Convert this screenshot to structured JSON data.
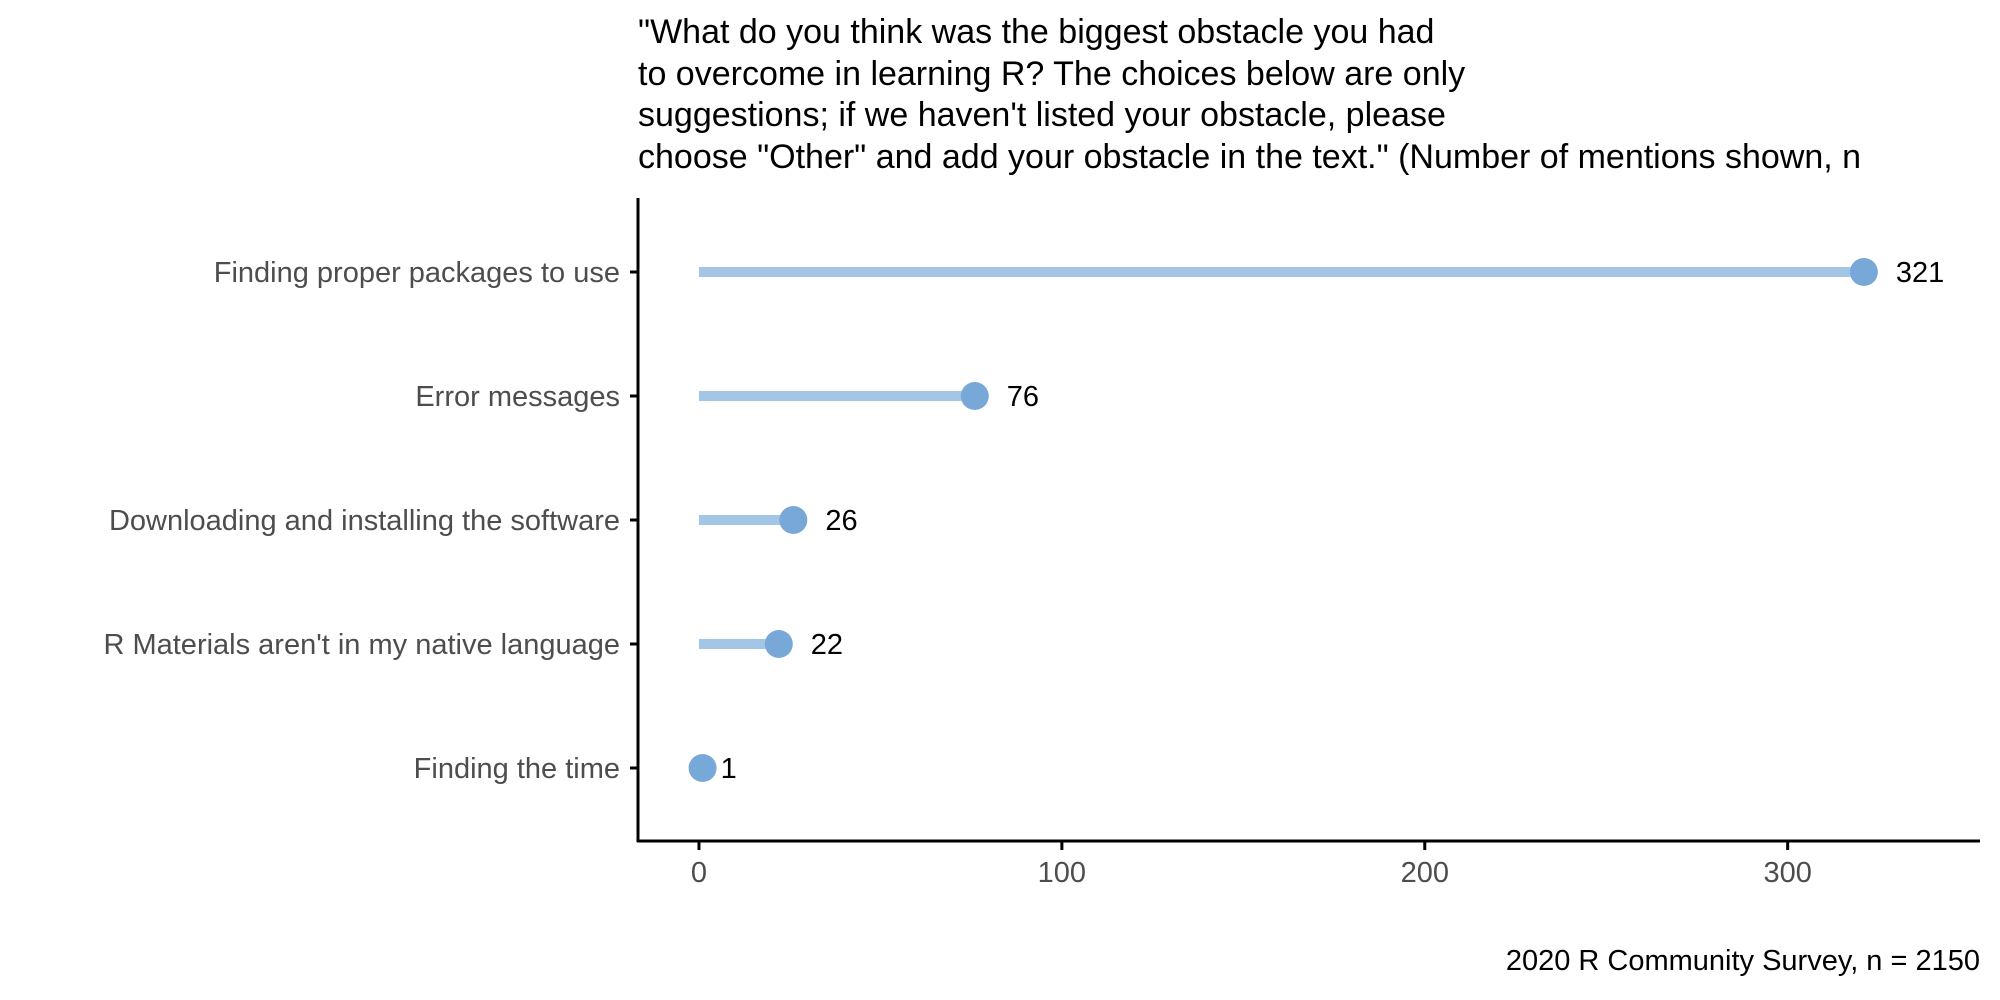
{
  "chart_data": {
    "type": "lollipop",
    "title_lines": [
      "\"What do you think was the biggest obstacle you had",
      "to overcome in learning R? The choices below are only",
      "suggestions; if we haven't listed your obstacle, please",
      "choose \"Other\" and add your obstacle in the text.\" (Number of mentions shown, n"
    ],
    "caption": "2020 R Community Survey, n = 2150",
    "categories": [
      "Finding proper packages to use",
      "Error messages",
      "Downloading and installing the software",
      "R Materials aren't in my native language",
      "Finding the time"
    ],
    "values": [
      321,
      76,
      26,
      22,
      1
    ],
    "value_labels": [
      "321",
      "76",
      "26",
      "22",
      "1"
    ],
    "x_ticks": [
      0,
      100,
      200,
      300
    ],
    "x_tick_labels": [
      "0",
      "100",
      "200",
      "300"
    ],
    "xlim": [
      -16.8,
      353
    ],
    "grid": false,
    "colors": {
      "segment": "#a3c6e6",
      "point": "#78a8d8",
      "axis": "#000000"
    }
  }
}
